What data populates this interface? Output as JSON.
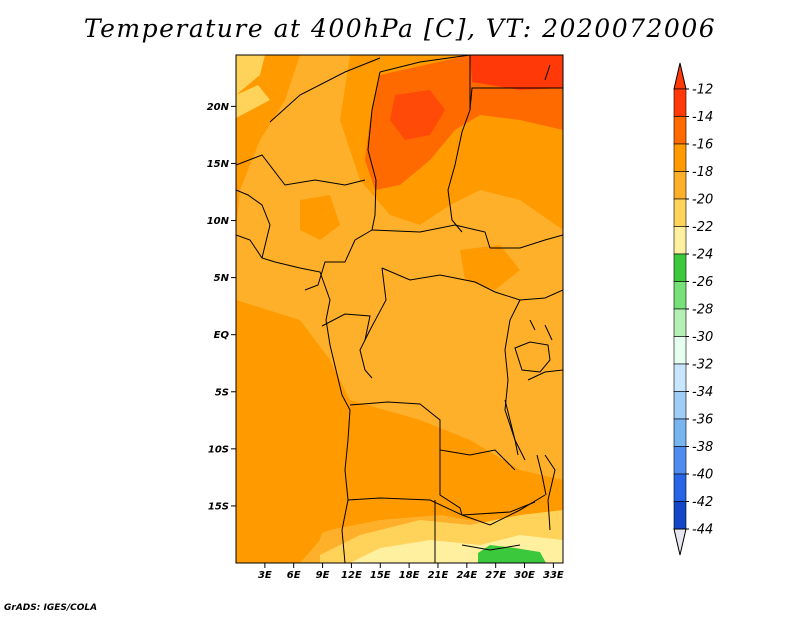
{
  "title": "Temperature at 400hPa [C], VT: 2020072006",
  "credit": "GrADS: IGES/COLA",
  "map": {
    "lon_range": [
      0,
      34
    ],
    "lat_range": [
      -20,
      24.5
    ],
    "lon_ticks": [
      {
        "value": 3,
        "label": "3E"
      },
      {
        "value": 6,
        "label": "6E"
      },
      {
        "value": 9,
        "label": "9E"
      },
      {
        "value": 12,
        "label": "12E"
      },
      {
        "value": 15,
        "label": "15E"
      },
      {
        "value": 18,
        "label": "18E"
      },
      {
        "value": 21,
        "label": "21E"
      },
      {
        "value": 24,
        "label": "24E"
      },
      {
        "value": 27,
        "label": "27E"
      },
      {
        "value": 30,
        "label": "30E"
      },
      {
        "value": 33,
        "label": "33E"
      }
    ],
    "lat_ticks": [
      {
        "value": 20,
        "label": "20N"
      },
      {
        "value": 15,
        "label": "15N"
      },
      {
        "value": 10,
        "label": "10N"
      },
      {
        "value": 5,
        "label": "5N"
      },
      {
        "value": 0,
        "label": "EQ"
      },
      {
        "value": -5,
        "label": "5S"
      },
      {
        "value": -10,
        "label": "10S"
      },
      {
        "value": -15,
        "label": "15S"
      }
    ]
  },
  "colorbar": {
    "labels": [
      "-12",
      "-14",
      "-16",
      "-18",
      "-20",
      "-22",
      "-24",
      "-26",
      "-28",
      "-30",
      "-32",
      "-34",
      "-36",
      "-38",
      "-40",
      "-42",
      "-44"
    ],
    "colors": [
      "#ff3a08",
      "#ff6a00",
      "#ff9a00",
      "#ffb02a",
      "#ffd25a",
      "#fff0a0",
      "#3cc83c",
      "#78e078",
      "#b4f0b4",
      "#e6fff0",
      "#c8e6ff",
      "#a0cdf5",
      "#78b4f0",
      "#508cf0",
      "#2864e6",
      "#1446c8",
      "#0a1e9a",
      "#000a5a",
      "#e6e6f0"
    ],
    "tip_top_color": "#ff3a08",
    "tip_bottom_color": "#e6e6f0"
  }
}
